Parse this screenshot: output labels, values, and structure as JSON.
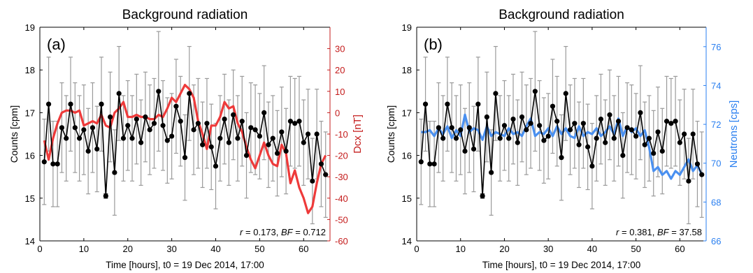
{
  "chart_data": [
    {
      "type": "line",
      "panel_label": "(a)",
      "title": "Background radiation",
      "xlabel": "Time [hours], t0 = 19 Dec 2014, 17:00",
      "ylabel": "Counts [cpm]",
      "y2label": "Dcx [nT]",
      "xlim": [
        0,
        66
      ],
      "ylim": [
        14,
        19
      ],
      "y2lim": [
        -60,
        40
      ],
      "xticks": [
        0,
        10,
        20,
        30,
        40,
        50,
        60
      ],
      "yticks": [
        14,
        15,
        16,
        17,
        18,
        19
      ],
      "y2ticks": [
        -60,
        -50,
        -40,
        -30,
        -20,
        -10,
        0,
        10,
        20,
        30
      ],
      "grid": false,
      "annotation": {
        "r_label": "r",
        "r_value": "0.173",
        "bf_label": "BF",
        "bf_value": "0.712"
      },
      "colors": {
        "counts": "#000000",
        "errorbar": "#9a9a9a",
        "secondary": "#ee3a3a",
        "secondary_axis": "#c41b1b"
      },
      "x": [
        1,
        2,
        3,
        4,
        5,
        6,
        7,
        8,
        9,
        10,
        11,
        12,
        13,
        14,
        15,
        16,
        17,
        18,
        19,
        20,
        21,
        22,
        23,
        24,
        25,
        26,
        27,
        28,
        29,
        30,
        31,
        32,
        33,
        34,
        35,
        36,
        37,
        38,
        39,
        40,
        41,
        42,
        43,
        44,
        45,
        46,
        47,
        48,
        49,
        50,
        51,
        52,
        53,
        54,
        55,
        56,
        57,
        58,
        59,
        60,
        61,
        62,
        63,
        64,
        65
      ],
      "series": [
        {
          "values": [
            15.85,
            17.2,
            15.8,
            15.8,
            16.65,
            16.4,
            17.2,
            16.65,
            16.4,
            16.6,
            16.1,
            16.65,
            16.15,
            17.2,
            15.05,
            16.9,
            15.6,
            17.45,
            16.4,
            16.7,
            16.4,
            16.85,
            16.3,
            16.9,
            16.6,
            16.75,
            17.5,
            16.7,
            16.35,
            16.45,
            17.15,
            16.8,
            15.95,
            17.45,
            16.6,
            16.75,
            16.25,
            16.75,
            16.2,
            15.75,
            16.4,
            16.85,
            16.3,
            16.95,
            16.4,
            16.8,
            16.0,
            16.65,
            16.6,
            16.45,
            17.0,
            16.25,
            16.4,
            16.05,
            16.55,
            16.1,
            16.8,
            16.75,
            16.8,
            16.3,
            16.5,
            15.4,
            16.5,
            15.8,
            15.55
          ],
          "errors": [
            1.0,
            1.1,
            1.0,
            1.0,
            1.05,
            1.0,
            1.1,
            1.05,
            1.0,
            1.05,
            1.0,
            1.05,
            1.0,
            1.1,
            0.05,
            1.05,
            1.0,
            1.1,
            1.0,
            1.05,
            1.0,
            1.05,
            1.0,
            1.05,
            1.05,
            1.05,
            1.4,
            1.05,
            1.0,
            1.0,
            1.1,
            1.05,
            1.0,
            1.1,
            1.05,
            1.05,
            1.0,
            1.05,
            1.0,
            1.0,
            1.0,
            1.05,
            1.0,
            1.05,
            1.0,
            1.05,
            1.0,
            1.05,
            1.05,
            1.0,
            1.1,
            1.0,
            1.0,
            1.0,
            1.05,
            1.0,
            1.05,
            1.05,
            1.05,
            1.0,
            1.05,
            1.0,
            1.05,
            1.0,
            1.0
          ]
        },
        {
          "name": "Dcx",
          "axis": "right",
          "x": [
            1,
            2,
            3,
            4,
            5,
            6,
            7,
            8,
            9,
            10,
            11,
            12,
            13,
            14,
            15,
            16,
            17,
            18,
            19,
            20,
            21,
            22,
            23,
            24,
            25,
            26,
            27,
            28,
            29,
            30,
            31,
            32,
            33,
            34,
            35,
            36,
            37,
            38,
            39,
            40,
            41,
            42,
            43,
            44,
            45,
            46,
            47,
            48,
            49,
            50,
            51,
            52,
            53,
            54,
            55,
            56,
            57,
            58,
            59,
            60,
            61,
            62,
            63,
            64,
            65
          ],
          "values": [
            -13,
            -22,
            -12,
            -5,
            0,
            1,
            1,
            0,
            1,
            -6,
            -5,
            -4,
            -5,
            -1,
            -6,
            -7,
            0,
            2,
            5,
            -2,
            -2,
            -1,
            -2,
            -2,
            -3,
            -3,
            -1,
            -2,
            2,
            7,
            5,
            9,
            13,
            11,
            7,
            -4,
            -10,
            -17,
            -6,
            -6,
            -2,
            5,
            2,
            3,
            -5,
            -9,
            -16,
            -22,
            -26,
            -20,
            -14,
            -20,
            -24,
            -25,
            -15,
            -19,
            -33,
            -27,
            -35,
            -40,
            -47,
            -44,
            -33,
            -24,
            -20
          ]
        }
      ]
    },
    {
      "type": "line",
      "panel_label": "(b)",
      "title": "Background radiation",
      "xlabel": "Time [hours], t0 = 19 Dec 2014, 17:00",
      "ylabel": "Counts [cpm]",
      "y2label": "Neutrons [cps]",
      "xlim": [
        0,
        66
      ],
      "ylim": [
        14,
        19
      ],
      "y2lim": [
        66,
        77
      ],
      "xticks": [
        0,
        10,
        20,
        30,
        40,
        50,
        60
      ],
      "yticks": [
        14,
        15,
        16,
        17,
        18,
        19
      ],
      "y2ticks": [
        66,
        68,
        70,
        72,
        74,
        76
      ],
      "grid": false,
      "annotation": {
        "r_label": "r",
        "r_value": "0.381",
        "bf_label": "BF",
        "bf_value": "37.58"
      },
      "colors": {
        "counts": "#000000",
        "errorbar": "#9a9a9a",
        "secondary": "#4a90f0",
        "secondary_axis": "#2a7ff0"
      },
      "x": [
        1,
        2,
        3,
        4,
        5,
        6,
        7,
        8,
        9,
        10,
        11,
        12,
        13,
        14,
        15,
        16,
        17,
        18,
        19,
        20,
        21,
        22,
        23,
        24,
        25,
        26,
        27,
        28,
        29,
        30,
        31,
        32,
        33,
        34,
        35,
        36,
        37,
        38,
        39,
        40,
        41,
        42,
        43,
        44,
        45,
        46,
        47,
        48,
        49,
        50,
        51,
        52,
        53,
        54,
        55,
        56,
        57,
        58,
        59,
        60,
        61,
        62,
        63,
        64,
        65
      ],
      "series": [
        {
          "values": [
            15.85,
            17.2,
            15.8,
            15.8,
            16.65,
            16.4,
            17.2,
            16.65,
            16.4,
            16.6,
            16.1,
            16.65,
            16.15,
            17.2,
            15.05,
            16.9,
            15.6,
            17.45,
            16.4,
            16.7,
            16.4,
            16.85,
            16.3,
            16.9,
            16.6,
            16.75,
            17.5,
            16.7,
            16.35,
            16.45,
            17.15,
            16.8,
            15.95,
            17.45,
            16.6,
            16.75,
            16.25,
            16.75,
            16.2,
            15.75,
            16.4,
            16.85,
            16.3,
            16.95,
            16.4,
            16.8,
            16.0,
            16.65,
            16.6,
            16.45,
            17.0,
            16.25,
            16.4,
            16.05,
            16.55,
            16.1,
            16.8,
            16.75,
            16.8,
            16.3,
            16.5,
            15.4,
            16.5,
            15.8,
            15.55
          ],
          "errors": [
            1.0,
            1.1,
            1.0,
            1.0,
            1.05,
            1.0,
            1.1,
            1.05,
            1.0,
            1.05,
            1.0,
            1.05,
            1.0,
            1.1,
            0.05,
            1.05,
            1.0,
            1.1,
            1.0,
            1.05,
            1.0,
            1.05,
            1.0,
            1.05,
            1.05,
            1.05,
            1.4,
            1.05,
            1.0,
            1.0,
            1.1,
            1.05,
            1.0,
            1.1,
            1.05,
            1.05,
            1.0,
            1.05,
            1.0,
            1.0,
            1.0,
            1.05,
            1.0,
            1.05,
            1.0,
            1.05,
            1.0,
            1.05,
            1.05,
            1.0,
            1.1,
            1.0,
            1.0,
            1.0,
            1.05,
            1.0,
            1.05,
            1.05,
            1.05,
            1.0,
            1.05,
            1.0,
            1.05,
            1.0,
            1.0
          ]
        },
        {
          "name": "Neutrons",
          "axis": "right",
          "x": [
            1,
            2,
            3,
            4,
            5,
            6,
            7,
            8,
            9,
            10,
            11,
            12,
            13,
            14,
            15,
            16,
            17,
            18,
            19,
            20,
            21,
            22,
            23,
            24,
            25,
            26,
            27,
            28,
            29,
            30,
            31,
            32,
            33,
            34,
            35,
            36,
            37,
            38,
            39,
            40,
            41,
            42,
            43,
            44,
            45,
            46,
            47,
            48,
            49,
            50,
            51,
            52,
            53,
            54,
            55,
            56,
            57,
            58,
            59,
            60,
            61,
            62,
            63,
            64,
            65
          ],
          "values": [
            71.6,
            71.6,
            71.7,
            71.4,
            71.8,
            71.5,
            71.9,
            71.3,
            71.7,
            71.4,
            72.5,
            71.6,
            71.8,
            71.7,
            71.2,
            71.9,
            71.4,
            71.6,
            71.5,
            71.4,
            71.8,
            71.5,
            71.6,
            71.4,
            71.9,
            72.3,
            71.4,
            71.6,
            71.5,
            71.8,
            71.4,
            71.9,
            71.5,
            71.8,
            71.4,
            71.3,
            71.9,
            71.4,
            71.6,
            71.5,
            71.8,
            71.4,
            71.6,
            71.9,
            71.5,
            72.3,
            71.4,
            71.9,
            71.6,
            71.8,
            71.4,
            71.7,
            70.8,
            69.6,
            69.8,
            69.4,
            69.6,
            69.2,
            69.6,
            69.4,
            69.8,
            70.2,
            69.6,
            69.9,
            69.4
          ]
        }
      ]
    }
  ]
}
